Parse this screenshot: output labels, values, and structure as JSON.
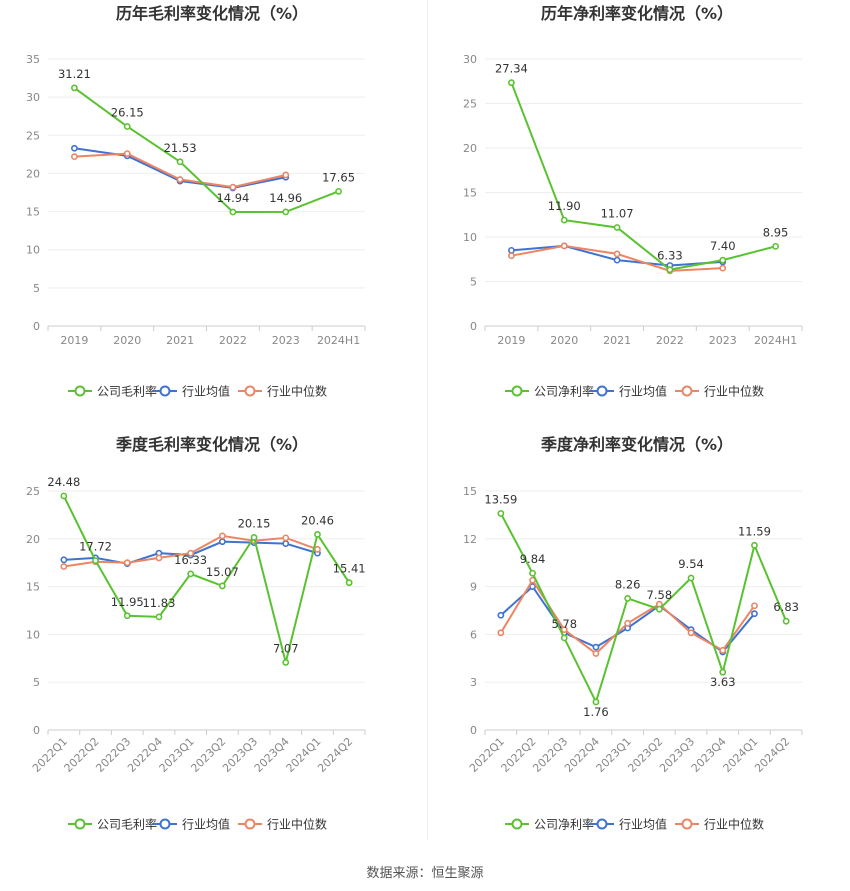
{
  "footer": "数据来源：恒生聚源",
  "colors": {
    "company": "#5ac230",
    "avg": "#3f72d1",
    "median": "#ec8563"
  },
  "chart_data": [
    {
      "type": "line",
      "title": "历年毛利率变化情况（%）",
      "categories": [
        "2019",
        "2020",
        "2021",
        "2022",
        "2023",
        "2024H1"
      ],
      "ylim": [
        0,
        35
      ],
      "yticks": [
        0,
        5,
        10,
        15,
        20,
        25,
        30,
        35
      ],
      "rotate_x": false,
      "series": [
        {
          "name": "公司毛利率",
          "key": "company",
          "values": [
            31.21,
            26.15,
            21.53,
            14.94,
            14.96,
            17.65
          ],
          "labels": [
            "31.21",
            "26.15",
            "21.53",
            "14.94",
            "14.96",
            "17.65"
          ]
        },
        {
          "name": "行业均值",
          "key": "avg",
          "values": [
            23.3,
            22.3,
            19.0,
            18.1,
            19.5,
            null
          ]
        },
        {
          "name": "行业中位数",
          "key": "median",
          "values": [
            22.2,
            22.6,
            19.2,
            18.2,
            19.8,
            null
          ]
        }
      ]
    },
    {
      "type": "line",
      "title": "历年净利率变化情况（%）",
      "categories": [
        "2019",
        "2020",
        "2021",
        "2022",
        "2023",
        "2024H1"
      ],
      "ylim": [
        0,
        30
      ],
      "yticks": [
        0,
        5,
        10,
        15,
        20,
        25,
        30
      ],
      "rotate_x": false,
      "series": [
        {
          "name": "公司净利率",
          "key": "company",
          "values": [
            27.34,
            11.9,
            11.07,
            6.33,
            7.4,
            8.95
          ],
          "labels": [
            "27.34",
            "11.90",
            "11.07",
            "6.33",
            "7.40",
            "8.95"
          ]
        },
        {
          "name": "行业均值",
          "key": "avg",
          "values": [
            8.5,
            9.0,
            7.4,
            6.8,
            7.2,
            null
          ]
        },
        {
          "name": "行业中位数",
          "key": "median",
          "values": [
            7.9,
            9.0,
            8.1,
            6.2,
            6.5,
            null
          ]
        }
      ]
    },
    {
      "type": "line",
      "title": "季度毛利率变化情况（%）",
      "categories": [
        "2022Q1",
        "2022Q2",
        "2022Q3",
        "2022Q4",
        "2023Q1",
        "2023Q2",
        "2023Q3",
        "2023Q4",
        "2024Q1",
        "2024Q2"
      ],
      "ylim": [
        0,
        25
      ],
      "yticks": [
        0,
        5,
        10,
        15,
        20,
        25
      ],
      "rotate_x": true,
      "series": [
        {
          "name": "公司毛利率",
          "key": "company",
          "values": [
            24.48,
            17.72,
            11.95,
            11.83,
            16.33,
            15.07,
            20.15,
            7.07,
            20.46,
            15.41
          ],
          "labels": [
            "24.48",
            "17.72",
            "11.95",
            "11.83",
            "16.33",
            "15.07",
            "20.15",
            "7.07",
            "20.46",
            "15.41"
          ]
        },
        {
          "name": "行业均值",
          "key": "avg",
          "values": [
            17.8,
            18.0,
            17.4,
            18.5,
            18.3,
            19.7,
            19.6,
            19.5,
            18.5,
            null
          ]
        },
        {
          "name": "行业中位数",
          "key": "median",
          "values": [
            17.1,
            17.6,
            17.5,
            18.0,
            18.5,
            20.3,
            19.8,
            20.1,
            18.9,
            null
          ]
        }
      ]
    },
    {
      "type": "line",
      "title": "季度净利率变化情况（%）",
      "categories": [
        "2022Q1",
        "2022Q2",
        "2022Q3",
        "2022Q4",
        "2023Q1",
        "2023Q2",
        "2023Q3",
        "2023Q4",
        "2024Q1",
        "2024Q2"
      ],
      "ylim": [
        0,
        15
      ],
      "yticks": [
        0,
        3,
        6,
        9,
        12,
        15
      ],
      "rotate_x": true,
      "series": [
        {
          "name": "公司净利率",
          "key": "company",
          "values": [
            13.59,
            9.84,
            5.78,
            1.76,
            8.26,
            7.58,
            9.54,
            3.63,
            11.59,
            6.83
          ],
          "labels": [
            "13.59",
            "9.84",
            "5.78",
            "1.76",
            "8.26",
            "7.58",
            "9.54",
            "3.63",
            "11.59",
            "6.83"
          ]
        },
        {
          "name": "行业均值",
          "key": "avg",
          "values": [
            7.2,
            9.0,
            6.1,
            5.2,
            6.4,
            7.8,
            6.3,
            4.9,
            7.3,
            null
          ]
        },
        {
          "name": "行业中位数",
          "key": "median",
          "values": [
            6.1,
            9.4,
            6.3,
            4.8,
            6.7,
            7.9,
            6.1,
            5.0,
            7.8,
            null
          ]
        }
      ]
    }
  ]
}
